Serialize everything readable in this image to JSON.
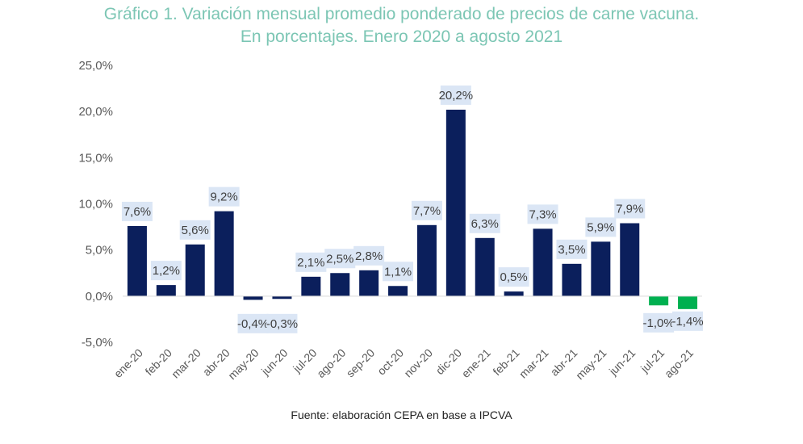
{
  "chart_data": {
    "type": "bar",
    "title": "Gráfico 1. Variación mensual promedio ponderado de precios de carne vacuna.",
    "subtitle": "En porcentajes. Enero 2020 a agosto 2021",
    "categories": [
      "ene-20",
      "feb-20",
      "mar-20",
      "abr-20",
      "may-20",
      "jun-20",
      "jul-20",
      "ago-20",
      "sep-20",
      "oct-20",
      "nov-20",
      "dic-20",
      "ene-21",
      "feb-21",
      "mar-21",
      "abr-21",
      "may-21",
      "jun-21",
      "jul-21",
      "ago-21"
    ],
    "values": [
      7.6,
      1.2,
      5.6,
      9.2,
      -0.4,
      -0.3,
      2.1,
      2.5,
      2.8,
      1.1,
      7.7,
      20.2,
      6.3,
      0.5,
      7.3,
      3.5,
      5.9,
      7.9,
      -1.0,
      -1.4
    ],
    "data_labels": [
      "7,6%",
      "1,2%",
      "5,6%",
      "9,2%",
      "-0,4%",
      "-0,3%",
      "2,1%",
      "2,5%",
      "2,8%",
      "1,1%",
      "7,7%",
      "20,2%",
      "6,3%",
      "0,5%",
      "7,3%",
      "3,5%",
      "5,9%",
      "7,9%",
      "-1,0%",
      "-1,4%"
    ],
    "ylim": [
      -5,
      25
    ],
    "yticks": [
      -5,
      0,
      5,
      10,
      15,
      20,
      25
    ],
    "ytick_labels": [
      "-5,0%",
      "0,0%",
      "5,0%",
      "10,0%",
      "15,0%",
      "20,0%",
      "25,0%"
    ],
    "xlabel": "",
    "ylabel": "",
    "grid": false,
    "colors": {
      "bar": "#0b1f5c",
      "highlight_bars": "#00b050",
      "label_bg": "#dbe6f5",
      "title": "#7cc6b4",
      "axis_text": "#595959"
    },
    "highlighted_categories": [
      "jul-21",
      "ago-21"
    ]
  },
  "source_note": "Fuente: elaboración CEPA en base a IPCVA"
}
